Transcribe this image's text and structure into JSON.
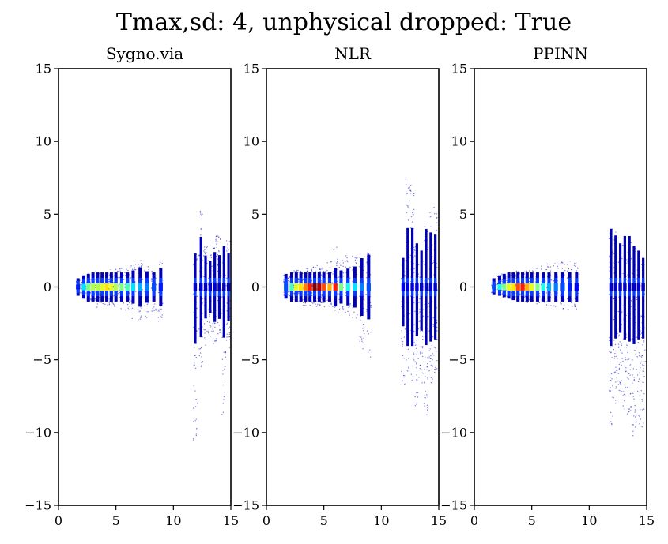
{
  "figure": {
    "suptitle": "Tmax,sd: 4, unphysical dropped: True"
  },
  "chart_data": [
    {
      "type": "scatter",
      "title": "Sygno.via",
      "xlim": [
        0,
        15
      ],
      "ylim": [
        -15,
        15
      ],
      "xticks": [
        "0",
        "5",
        "10",
        "15"
      ],
      "yticks": [
        "15",
        "10",
        "5",
        "0",
        "−5",
        "−10",
        "−15"
      ],
      "colormap": "jet (density)",
      "columns": [
        {
          "x": 1.7,
          "ymin": -0.6,
          "ymax": 0.6,
          "peak": 0.15
        },
        {
          "x": 2.2,
          "ymin": -0.8,
          "ymax": 0.8,
          "peak": 0.35
        },
        {
          "x": 2.6,
          "ymin": -1.0,
          "ymax": 0.9,
          "peak": 0.5
        },
        {
          "x": 3.0,
          "ymin": -1.1,
          "ymax": 1.0,
          "peak": 0.55
        },
        {
          "x": 3.4,
          "ymin": -1.5,
          "ymax": 1.1,
          "peak": 0.55
        },
        {
          "x": 3.8,
          "ymin": -1.2,
          "ymax": 1.1,
          "peak": 0.6
        },
        {
          "x": 4.2,
          "ymin": -1.3,
          "ymax": 1.0,
          "peak": 0.65
        },
        {
          "x": 4.6,
          "ymin": -1.2,
          "ymax": 1.2,
          "peak": 0.6
        },
        {
          "x": 5.0,
          "ymin": -1.4,
          "ymax": 1.3,
          "peak": 0.55
        },
        {
          "x": 5.5,
          "ymin": -1.5,
          "ymax": 1.4,
          "peak": 0.5
        },
        {
          "x": 6.0,
          "ymin": -1.8,
          "ymax": 1.5,
          "peak": 0.45
        },
        {
          "x": 6.5,
          "ymin": -2.2,
          "ymax": 1.6,
          "peak": 0.35
        },
        {
          "x": 7.1,
          "ymin": -2.6,
          "ymax": 1.9,
          "peak": 0.3
        },
        {
          "x": 7.7,
          "ymin": -2.1,
          "ymax": 1.5,
          "peak": 0.25
        },
        {
          "x": 8.3,
          "ymin": -1.7,
          "ymax": 1.4,
          "peak": 0.2
        },
        {
          "x": 8.9,
          "ymin": -2.4,
          "ymax": 1.9,
          "peak": 0.15
        },
        {
          "x": 11.9,
          "ymin": -10.7,
          "ymax": 2.3,
          "peak": 0.08
        },
        {
          "x": 12.4,
          "ymin": -5.5,
          "ymax": 6.0,
          "peak": 0.07
        },
        {
          "x": 12.8,
          "ymin": -4.2,
          "ymax": 3.0,
          "peak": 0.07
        },
        {
          "x": 13.2,
          "ymin": -3.5,
          "ymax": 2.5,
          "peak": 0.07
        },
        {
          "x": 13.6,
          "ymin": -4.0,
          "ymax": 4.0,
          "peak": 0.07
        },
        {
          "x": 14.0,
          "ymin": -3.8,
          "ymax": 3.5,
          "peak": 0.07
        },
        {
          "x": 14.4,
          "ymin": -8.8,
          "ymax": 2.8,
          "peak": 0.06
        },
        {
          "x": 14.8,
          "ymin": -4.5,
          "ymax": 3.3,
          "peak": 0.06
        }
      ]
    },
    {
      "type": "scatter",
      "title": "NLR",
      "xlim": [
        0,
        15
      ],
      "ylim": [
        -15,
        15
      ],
      "xticks": [
        "0",
        "5",
        "10",
        "15"
      ],
      "yticks": [
        "15",
        "10",
        "5",
        "0",
        "−5",
        "−10",
        "−15"
      ],
      "colormap": "jet (density)",
      "columns": [
        {
          "x": 1.7,
          "ymin": -0.8,
          "ymax": 0.9,
          "peak": 0.2
        },
        {
          "x": 2.2,
          "ymin": -1.0,
          "ymax": 1.1,
          "peak": 0.45
        },
        {
          "x": 2.6,
          "ymin": -1.1,
          "ymax": 1.2,
          "peak": 0.6
        },
        {
          "x": 3.0,
          "ymin": -1.2,
          "ymax": 1.2,
          "peak": 0.65
        },
        {
          "x": 3.4,
          "ymin": -1.3,
          "ymax": 1.3,
          "peak": 0.75
        },
        {
          "x": 3.8,
          "ymin": -1.3,
          "ymax": 1.4,
          "peak": 0.85
        },
        {
          "x": 4.2,
          "ymin": -1.4,
          "ymax": 1.4,
          "peak": 1.0
        },
        {
          "x": 4.6,
          "ymin": -1.3,
          "ymax": 1.5,
          "peak": 0.95
        },
        {
          "x": 5.0,
          "ymin": -1.4,
          "ymax": 1.6,
          "peak": 0.8
        },
        {
          "x": 5.5,
          "ymin": -1.5,
          "ymax": 1.8,
          "peak": 0.7
        },
        {
          "x": 6.0,
          "ymin": -1.6,
          "ymax": 2.8,
          "peak": 0.85
        },
        {
          "x": 6.5,
          "ymin": -1.8,
          "ymax": 2.0,
          "peak": 0.5
        },
        {
          "x": 7.1,
          "ymin": -2.0,
          "ymax": 2.2,
          "peak": 0.4
        },
        {
          "x": 7.7,
          "ymin": -2.5,
          "ymax": 2.2,
          "peak": 0.35
        },
        {
          "x": 8.3,
          "ymin": -4.3,
          "ymax": 2.3,
          "peak": 0.25
        },
        {
          "x": 8.9,
          "ymin": -5.0,
          "ymax": 2.4,
          "peak": 0.2
        },
        {
          "x": 11.9,
          "ymin": -7.0,
          "ymax": 2.0,
          "peak": 0.1
        },
        {
          "x": 12.3,
          "ymin": -6.0,
          "ymax": 7.5,
          "peak": 0.09
        },
        {
          "x": 12.7,
          "ymin": -6.5,
          "ymax": 7.0,
          "peak": 0.09
        },
        {
          "x": 13.1,
          "ymin": -8.3,
          "ymax": 3.0,
          "peak": 0.09
        },
        {
          "x": 13.5,
          "ymin": -7.5,
          "ymax": 2.5,
          "peak": 0.09
        },
        {
          "x": 13.9,
          "ymin": -8.8,
          "ymax": 4.5,
          "peak": 0.08
        },
        {
          "x": 14.3,
          "ymin": -7.0,
          "ymax": 5.5,
          "peak": 0.08
        },
        {
          "x": 14.7,
          "ymin": -6.5,
          "ymax": 5.5,
          "peak": 0.08
        }
      ]
    },
    {
      "type": "scatter",
      "title": "PPINN",
      "xlim": [
        0,
        15
      ],
      "ylim": [
        -15,
        15
      ],
      "xticks": [
        "0",
        "5",
        "10",
        "15"
      ],
      "yticks": [
        "15",
        "10",
        "5",
        "0",
        "−5",
        "−10",
        "−15"
      ],
      "colormap": "jet (density)",
      "columns": [
        {
          "x": 1.7,
          "ymin": -0.5,
          "ymax": 0.6,
          "peak": 0.2
        },
        {
          "x": 2.2,
          "ymin": -0.6,
          "ymax": 0.8,
          "peak": 0.4
        },
        {
          "x": 2.6,
          "ymin": -0.7,
          "ymax": 0.9,
          "peak": 0.5
        },
        {
          "x": 3.0,
          "ymin": -0.8,
          "ymax": 1.0,
          "peak": 0.6
        },
        {
          "x": 3.4,
          "ymin": -0.9,
          "ymax": 1.0,
          "peak": 0.65
        },
        {
          "x": 3.8,
          "ymin": -1.0,
          "ymax": 1.1,
          "peak": 0.8
        },
        {
          "x": 4.2,
          "ymin": -1.0,
          "ymax": 1.1,
          "peak": 0.85
        },
        {
          "x": 4.6,
          "ymin": -1.1,
          "ymax": 1.2,
          "peak": 0.7
        },
        {
          "x": 5.0,
          "ymin": -1.1,
          "ymax": 1.3,
          "peak": 0.6
        },
        {
          "x": 5.5,
          "ymin": -1.2,
          "ymax": 1.4,
          "peak": 0.5
        },
        {
          "x": 6.0,
          "ymin": -1.2,
          "ymax": 1.5,
          "peak": 0.4
        },
        {
          "x": 6.5,
          "ymin": -1.3,
          "ymax": 1.6,
          "peak": 0.3
        },
        {
          "x": 7.1,
          "ymin": -1.4,
          "ymax": 1.7,
          "peak": 0.25
        },
        {
          "x": 7.7,
          "ymin": -1.5,
          "ymax": 1.8,
          "peak": 0.2
        },
        {
          "x": 8.3,
          "ymin": -1.6,
          "ymax": 1.8,
          "peak": 0.15
        },
        {
          "x": 8.9,
          "ymin": -1.6,
          "ymax": 1.8,
          "peak": 0.12
        },
        {
          "x": 11.9,
          "ymin": -9.5,
          "ymax": 4.0,
          "peak": 0.08
        },
        {
          "x": 12.3,
          "ymin": -8.0,
          "ymax": 3.8,
          "peak": 0.08
        },
        {
          "x": 12.7,
          "ymin": -7.5,
          "ymax": 3.0,
          "peak": 0.07
        },
        {
          "x": 13.1,
          "ymin": -8.5,
          "ymax": 3.5,
          "peak": 0.07
        },
        {
          "x": 13.5,
          "ymin": -9.0,
          "ymax": 3.5,
          "peak": 0.07
        },
        {
          "x": 13.9,
          "ymin": -10.3,
          "ymax": 2.8,
          "peak": 0.07
        },
        {
          "x": 14.3,
          "ymin": -9.5,
          "ymax": 2.5,
          "peak": 0.07
        },
        {
          "x": 14.7,
          "ymin": -9.8,
          "ymax": 2.0,
          "peak": 0.06
        }
      ]
    }
  ]
}
